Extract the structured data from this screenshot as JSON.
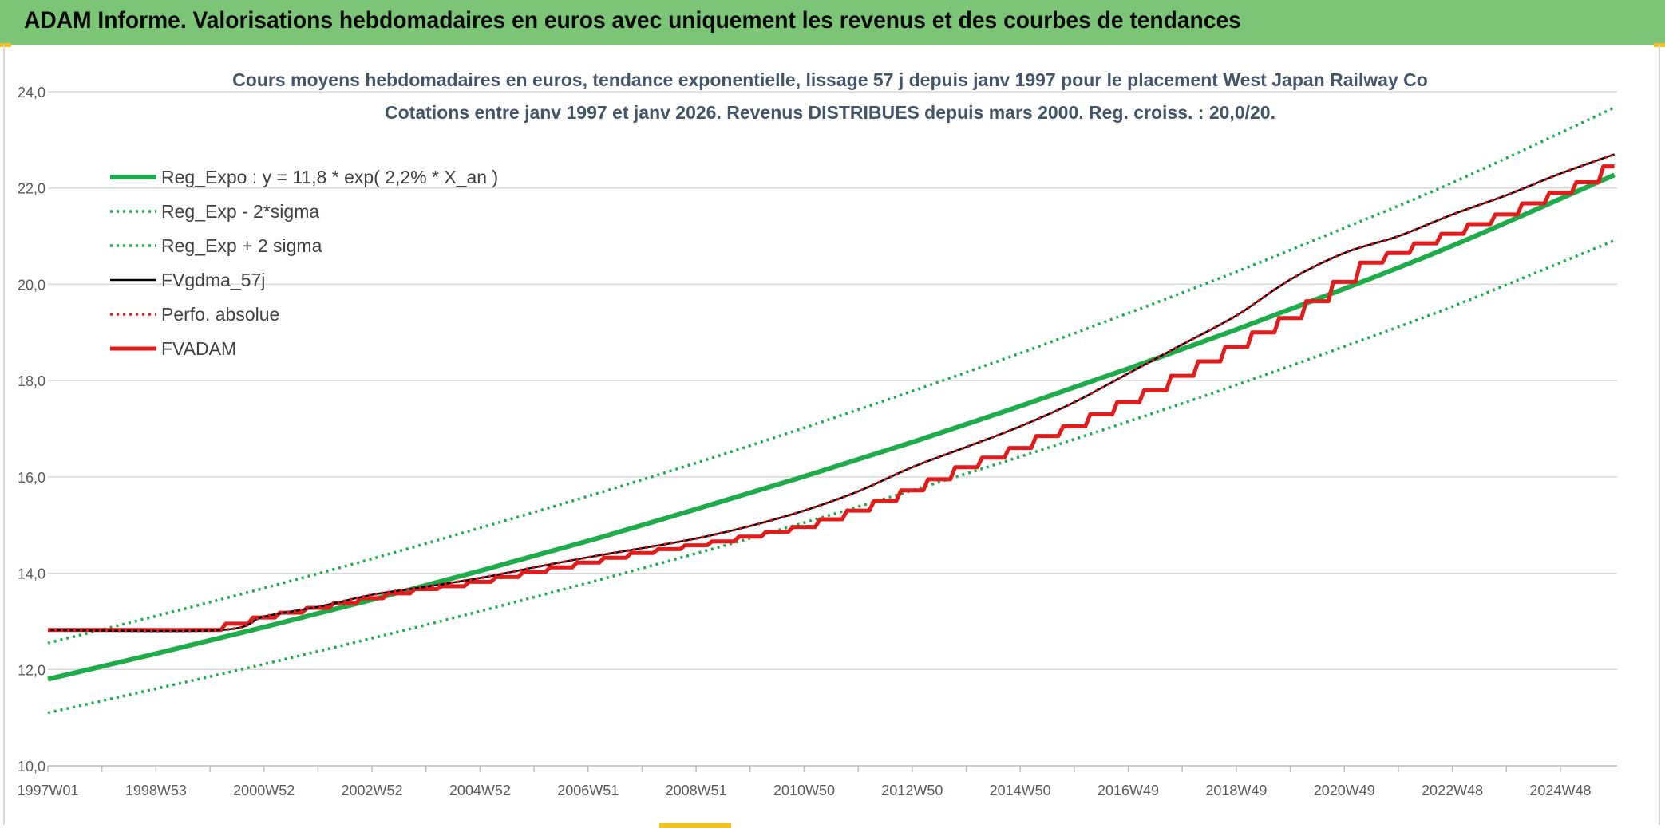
{
  "header": {
    "title": "ADAM Informe. Valorisations hebdomadaires en euros avec uniquement les revenus et des courbes de tendances"
  },
  "colors": {
    "banner": "#7cc576",
    "accent_corners": "#f3c21b",
    "reg_expo": "#1eac4b",
    "sigma_bands": "#1eac4b",
    "fvgdma": "#000000",
    "perfo": "#e31b1b",
    "fvadam": "#e31b1b",
    "grid": "#d9d9d9"
  },
  "chart_data": {
    "type": "line",
    "title": "Cours moyens hebdomadaires en euros, tendance exponentielle, lissage 57 j depuis janv 1997 pour le placement West Japan Railway Co",
    "subtitle": "Cotations entre janv 1997 et janv 2026. Revenus DISTRIBUES depuis mars 2000. Reg. croiss. : 20,0/20.",
    "xlabel": "",
    "ylabel": "",
    "ylim": [
      10,
      24
    ],
    "yticks": [
      "10,0",
      "12,0",
      "14,0",
      "16,0",
      "18,0",
      "20,0",
      "22,0",
      "24,0"
    ],
    "xlim": [
      1997.0,
      2026.05
    ],
    "xtick_labels": [
      "1997W01",
      "1998W53",
      "2000W52",
      "2002W52",
      "2004W52",
      "2006W51",
      "2008W51",
      "2010W50",
      "2012W50",
      "2014W50",
      "2016W49",
      "2018W49",
      "2020W49",
      "2022W48",
      "2024W48"
    ],
    "grid": true,
    "legend_position": "top-left",
    "series": [
      {
        "name": "Reg_Expo : y = 11,8 * exp( 2,2% *  X_an )",
        "style": "solid-thick",
        "color": "#1eac4b",
        "x": [
          1997,
          1999,
          2001,
          2003,
          2005,
          2007,
          2009,
          2011,
          2013,
          2015,
          2017,
          2019,
          2021,
          2023,
          2026
        ],
        "y": [
          11.8,
          12.33,
          12.88,
          13.45,
          14.05,
          14.67,
          15.33,
          16.01,
          16.72,
          17.47,
          18.25,
          19.06,
          19.91,
          20.8,
          22.27
        ]
      },
      {
        "name": "Reg_Exp - 2*sigma",
        "style": "dotted",
        "color": "#1eac4b",
        "x": [
          1997,
          1999,
          2001,
          2003,
          2005,
          2007,
          2009,
          2011,
          2013,
          2015,
          2017,
          2019,
          2021,
          2023,
          2026
        ],
        "y": [
          11.1,
          11.6,
          12.11,
          12.65,
          13.21,
          13.8,
          14.41,
          15.05,
          15.72,
          16.42,
          17.15,
          17.91,
          18.71,
          19.54,
          20.91
        ]
      },
      {
        "name": "Reg_Exp + 2 sigma",
        "style": "dotted",
        "color": "#1eac4b",
        "x": [
          1997,
          1999,
          2001,
          2003,
          2005,
          2007,
          2009,
          2011,
          2013,
          2015,
          2017,
          2019,
          2021,
          2023,
          2026
        ],
        "y": [
          12.55,
          13.11,
          13.69,
          14.3,
          14.94,
          15.6,
          16.29,
          17.02,
          17.78,
          18.57,
          19.4,
          20.26,
          21.17,
          22.11,
          23.67
        ]
      },
      {
        "name": "FVgdma_57j",
        "style": "solid-thin",
        "color": "#000000",
        "x": [
          1997,
          2000.2,
          2001,
          2002,
          2003,
          2004,
          2005,
          2006,
          2007,
          2008,
          2009,
          2010,
          2011,
          2012,
          2013,
          2014,
          2015,
          2016,
          2017,
          2018,
          2019,
          2020,
          2021,
          2022,
          2023,
          2024,
          2025,
          2026
        ],
        "y": [
          12.82,
          12.82,
          13.1,
          13.3,
          13.55,
          13.72,
          13.9,
          14.12,
          14.33,
          14.52,
          14.72,
          14.98,
          15.3,
          15.7,
          16.2,
          16.62,
          17.05,
          17.55,
          18.15,
          18.75,
          19.35,
          20.1,
          20.65,
          21.0,
          21.45,
          21.85,
          22.3,
          22.7
        ]
      },
      {
        "name": "Perfo. absolue",
        "style": "dotted",
        "color": "#e31b1b",
        "x": [
          1997,
          2000.2,
          2001,
          2002,
          2003,
          2004,
          2005,
          2006,
          2007,
          2008,
          2009,
          2010,
          2011,
          2012,
          2013,
          2014,
          2015,
          2016,
          2017,
          2018,
          2019,
          2020,
          2021,
          2022,
          2023,
          2024,
          2025,
          2026
        ],
        "y": [
          12.82,
          12.82,
          13.1,
          13.3,
          13.55,
          13.72,
          13.9,
          14.12,
          14.33,
          14.52,
          14.72,
          14.98,
          15.3,
          15.7,
          16.2,
          16.62,
          17.05,
          17.55,
          18.15,
          18.75,
          19.35,
          20.1,
          20.65,
          21.0,
          21.45,
          21.85,
          22.3,
          22.7
        ]
      },
      {
        "name": "FVADAM",
        "style": "step-thick",
        "color": "#e31b1b",
        "x": [
          1997,
          2000.25,
          2000.75,
          2001.25,
          2001.75,
          2002.25,
          2002.75,
          2003.25,
          2003.75,
          2004.25,
          2004.75,
          2005.25,
          2005.75,
          2006.25,
          2006.75,
          2007.25,
          2007.75,
          2008.25,
          2008.75,
          2009.25,
          2009.75,
          2010.25,
          2010.75,
          2011.25,
          2011.75,
          2012.25,
          2012.75,
          2013.25,
          2013.75,
          2014.25,
          2014.75,
          2015.25,
          2015.75,
          2016.25,
          2016.75,
          2017.25,
          2017.75,
          2018.25,
          2018.75,
          2019.25,
          2019.75,
          2020.25,
          2020.75,
          2021.25,
          2021.75,
          2022.25,
          2022.75,
          2023.25,
          2023.75,
          2024.25,
          2024.75,
          2025.25,
          2025.75
        ],
        "y": [
          12.82,
          12.95,
          13.08,
          13.18,
          13.28,
          13.38,
          13.48,
          13.58,
          13.67,
          13.73,
          13.82,
          13.92,
          14.02,
          14.12,
          14.22,
          14.32,
          14.42,
          14.5,
          14.58,
          14.66,
          14.76,
          14.86,
          14.96,
          15.12,
          15.3,
          15.5,
          15.72,
          15.95,
          16.2,
          16.4,
          16.6,
          16.85,
          17.05,
          17.3,
          17.55,
          17.8,
          18.1,
          18.4,
          18.7,
          19.0,
          19.3,
          19.65,
          20.05,
          20.45,
          20.65,
          20.85,
          21.05,
          21.25,
          21.45,
          21.68,
          21.9,
          22.12,
          22.45
        ]
      }
    ]
  }
}
